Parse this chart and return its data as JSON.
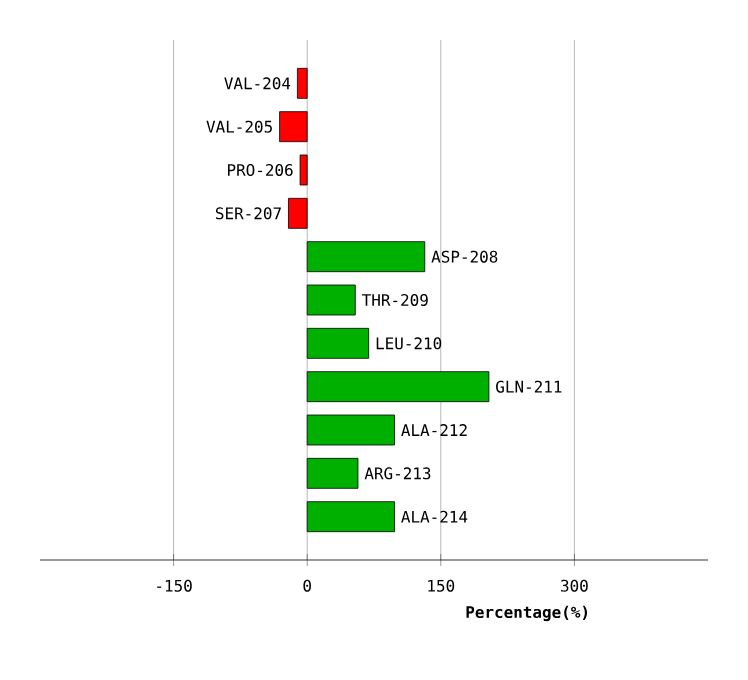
{
  "chart_data": {
    "type": "bar",
    "orientation": "horizontal",
    "xlabel": "Percentage(%)",
    "categories": [
      "VAL-204",
      "VAL-205",
      "PRO-206",
      "SER-207",
      "ASP-208",
      "THR-209",
      "LEU-210",
      "GLN-211",
      "ALA-212",
      "ARG-213",
      "ALA-214"
    ],
    "values": [
      -11,
      -31,
      -8,
      -21,
      132,
      54,
      69,
      204,
      98,
      57,
      98
    ],
    "colors": [
      "#ff0000",
      "#ff0000",
      "#ff0000",
      "#ff0000",
      "#00b000",
      "#00b000",
      "#00b000",
      "#00b000",
      "#00b000",
      "#00b000",
      "#00b000"
    ],
    "xlim": [
      -300,
      450
    ],
    "xticks": [
      -150,
      0,
      150,
      300
    ],
    "grid": "x"
  }
}
